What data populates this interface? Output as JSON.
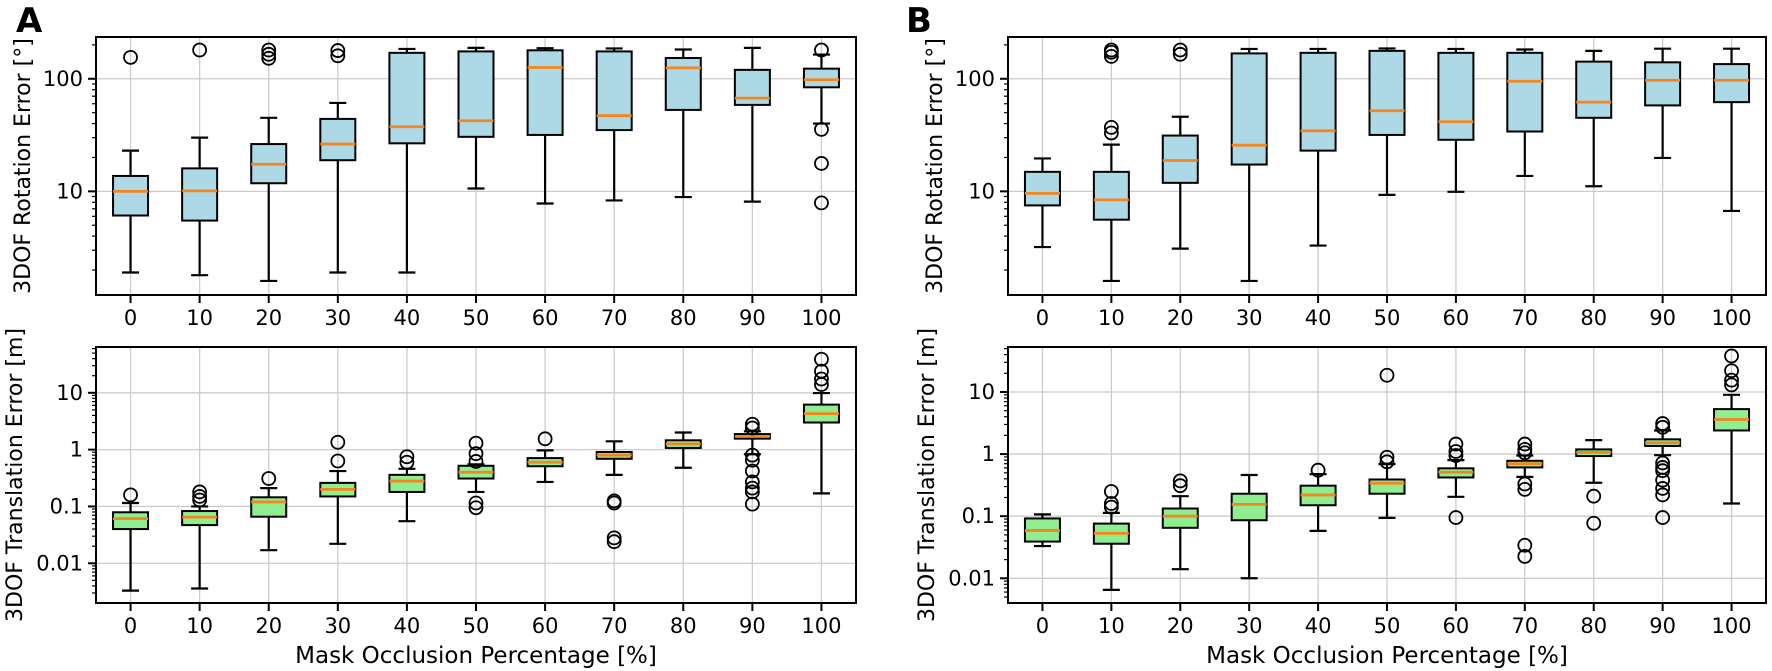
{
  "panels": [
    {
      "label": "A"
    },
    {
      "label": "B"
    }
  ],
  "colors": {
    "rotation_box_fill": "#ADD8E6",
    "translation_box_fill": "#90EE90",
    "median": "#F5861F",
    "grid": "#CCCCCC",
    "axis": "#000000",
    "background": "#FFFFFF"
  },
  "chart_data": [
    {
      "id": "A-rotation",
      "panel": "A",
      "type": "box",
      "yscale": "log",
      "grid": true,
      "ylabel": "3DOF Rotation Error [°]",
      "xlabel": "",
      "ylim": [
        1.2,
        235
      ],
      "yticks": [
        {
          "v": 100,
          "label": "100"
        },
        {
          "v": 10,
          "label": "10"
        }
      ],
      "categories": [
        "0",
        "10",
        "20",
        "30",
        "40",
        "50",
        "60",
        "70",
        "80",
        "90",
        "100"
      ],
      "box_fill": "#ADD8E6",
      "boxes": [
        {
          "whislo": 1.9,
          "q1": 6.1,
          "med": 10,
          "q3": 13.7,
          "whishi": 23,
          "fliers": [
            155
          ]
        },
        {
          "whislo": 1.8,
          "q1": 5.5,
          "med": 10.1,
          "q3": 16,
          "whishi": 30,
          "fliers": [
            180
          ]
        },
        {
          "whislo": 1.6,
          "q1": 11.8,
          "med": 17.4,
          "q3": 26.3,
          "whishi": 45,
          "fliers": [
            152,
            165,
            180
          ]
        },
        {
          "whislo": 1.9,
          "q1": 18.9,
          "med": 26.3,
          "q3": 44,
          "whishi": 61,
          "fliers": [
            160,
            178
          ]
        },
        {
          "whislo": 1.9,
          "q1": 26.7,
          "med": 37.5,
          "q3": 170,
          "whishi": 184,
          "fliers": []
        },
        {
          "whislo": 10.6,
          "q1": 30.5,
          "med": 42.4,
          "q3": 175,
          "whishi": 188,
          "fliers": []
        },
        {
          "whislo": 7.8,
          "q1": 31.7,
          "med": 126,
          "q3": 179,
          "whishi": 187,
          "fliers": []
        },
        {
          "whislo": 8.3,
          "q1": 35,
          "med": 47,
          "q3": 175,
          "whishi": 186,
          "fliers": []
        },
        {
          "whislo": 8.9,
          "q1": 52.9,
          "med": 125,
          "q3": 153,
          "whishi": 182,
          "fliers": []
        },
        {
          "whislo": 8.1,
          "q1": 58.6,
          "med": 67.3,
          "q3": 120,
          "whishi": 188,
          "fliers": []
        },
        {
          "whislo": 40,
          "q1": 84,
          "med": 98,
          "q3": 123,
          "whishi": 164,
          "fliers": [
            180,
            35.5,
            17.7,
            7.9
          ]
        }
      ]
    },
    {
      "id": "B-rotation",
      "panel": "B",
      "type": "box",
      "yscale": "log",
      "grid": true,
      "ylabel": "3DOF Rotation Error [°]",
      "xlabel": "",
      "ylim": [
        1.2,
        235
      ],
      "yticks": [
        {
          "v": 100,
          "label": "100"
        },
        {
          "v": 10,
          "label": "10"
        }
      ],
      "categories": [
        "0",
        "10",
        "20",
        "30",
        "40",
        "50",
        "60",
        "70",
        "80",
        "90",
        "100"
      ],
      "box_fill": "#ADD8E6",
      "boxes": [
        {
          "whislo": 3.2,
          "q1": 7.5,
          "med": 9.6,
          "q3": 14.9,
          "whishi": 19.6,
          "fliers": []
        },
        {
          "whislo": 1.6,
          "q1": 5.6,
          "med": 8.4,
          "q3": 14.9,
          "whishi": 26,
          "fliers": [
            33,
            37,
            158,
            172,
            180
          ]
        },
        {
          "whislo": 3.1,
          "q1": 11.9,
          "med": 18.8,
          "q3": 31.3,
          "whishi": 46,
          "fliers": [
            165,
            180
          ]
        },
        {
          "whislo": 1.6,
          "q1": 17.3,
          "med": 25.7,
          "q3": 168,
          "whishi": 184,
          "fliers": []
        },
        {
          "whislo": 3.3,
          "q1": 23,
          "med": 34.5,
          "q3": 170,
          "whishi": 184,
          "fliers": []
        },
        {
          "whislo": 9.3,
          "q1": 31.7,
          "med": 52,
          "q3": 177,
          "whishi": 186,
          "fliers": []
        },
        {
          "whislo": 9.9,
          "q1": 28.7,
          "med": 41.5,
          "q3": 170,
          "whishi": 184,
          "fliers": []
        },
        {
          "whislo": 13.7,
          "q1": 34,
          "med": 95,
          "q3": 170,
          "whishi": 182,
          "fliers": []
        },
        {
          "whislo": 11.1,
          "q1": 45,
          "med": 62,
          "q3": 142,
          "whishi": 177,
          "fliers": []
        },
        {
          "whislo": 19.8,
          "q1": 58,
          "med": 97,
          "q3": 140,
          "whishi": 185,
          "fliers": []
        },
        {
          "whislo": 6.7,
          "q1": 62,
          "med": 97,
          "q3": 135,
          "whishi": 185,
          "fliers": []
        }
      ]
    },
    {
      "id": "A-translation",
      "panel": "A",
      "type": "box",
      "yscale": "log",
      "grid": true,
      "ylabel": "3DOF Translation Error [m]",
      "xlabel": "Mask Occlusion Percentage [%]",
      "ylim": [
        0.002,
        64
      ],
      "yticks": [
        {
          "v": 10,
          "label": "10"
        },
        {
          "v": 1,
          "label": "1"
        },
        {
          "v": 0.1,
          "label": "0.1"
        },
        {
          "v": 0.01,
          "label": "0.01"
        }
      ],
      "categories": [
        "0",
        "10",
        "20",
        "30",
        "40",
        "50",
        "60",
        "70",
        "80",
        "90",
        "100"
      ],
      "box_fill": "#90EE90",
      "boxes": [
        {
          "whislo": 0.0033,
          "q1": 0.04,
          "med": 0.061,
          "q3": 0.079,
          "whishi": 0.115,
          "fliers": [
            0.16
          ]
        },
        {
          "whislo": 0.0036,
          "q1": 0.047,
          "med": 0.065,
          "q3": 0.083,
          "whishi": 0.1,
          "fliers": [
            0.13,
            0.15,
            0.18
          ]
        },
        {
          "whislo": 0.017,
          "q1": 0.066,
          "med": 0.12,
          "q3": 0.145,
          "whishi": 0.21,
          "fliers": [
            0.31
          ]
        },
        {
          "whislo": 0.022,
          "q1": 0.15,
          "med": 0.2,
          "q3": 0.26,
          "whishi": 0.42,
          "fliers": [
            0.63,
            1.35
          ]
        },
        {
          "whislo": 0.055,
          "q1": 0.18,
          "med": 0.28,
          "q3": 0.36,
          "whishi": 0.46,
          "fliers": [
            0.6,
            0.75
          ]
        },
        {
          "whislo": 0.18,
          "q1": 0.31,
          "med": 0.4,
          "q3": 0.52,
          "whishi": 0.55,
          "fliers": [
            0.62,
            0.85,
            1.3,
            0.115,
            0.095
          ]
        },
        {
          "whislo": 0.27,
          "q1": 0.51,
          "med": 0.6,
          "q3": 0.71,
          "whishi": 0.97,
          "fliers": [
            1.55
          ]
        },
        {
          "whislo": 0.36,
          "q1": 0.69,
          "med": 0.8,
          "q3": 0.91,
          "whishi": 1.4,
          "fliers": [
            0.125,
            0.115,
            0.028,
            0.024
          ]
        },
        {
          "whislo": 0.48,
          "q1": 1.07,
          "med": 1.26,
          "q3": 1.46,
          "whishi": 2.0,
          "fliers": []
        },
        {
          "whislo": 0.83,
          "q1": 1.56,
          "med": 1.71,
          "q3": 1.88,
          "whishi": 2.1,
          "fliers": [
            2.4,
            2.8,
            0.8,
            0.65,
            0.42,
            0.27,
            0.21,
            0.18,
            0.11
          ]
        },
        {
          "whislo": 0.17,
          "q1": 3.0,
          "med": 4.3,
          "q3": 6.2,
          "whishi": 9.9,
          "fliers": [
            14,
            17.5,
            24,
            39
          ]
        }
      ]
    },
    {
      "id": "B-translation",
      "panel": "B",
      "type": "box",
      "yscale": "log",
      "grid": true,
      "ylabel": "3DOF Translation Error [m]",
      "xlabel": "Mask Occlusion Percentage [%]",
      "ylim": [
        0.004,
        53
      ],
      "yticks": [
        {
          "v": 10,
          "label": "10"
        },
        {
          "v": 1,
          "label": "1"
        },
        {
          "v": 0.1,
          "label": "0.1"
        },
        {
          "v": 0.01,
          "label": "0.01"
        }
      ],
      "categories": [
        "0",
        "10",
        "20",
        "30",
        "40",
        "50",
        "60",
        "70",
        "80",
        "90",
        "100"
      ],
      "box_fill": "#90EE90",
      "boxes": [
        {
          "whislo": 0.033,
          "q1": 0.039,
          "med": 0.059,
          "q3": 0.092,
          "whishi": 0.107,
          "fliers": []
        },
        {
          "whislo": 0.0065,
          "q1": 0.036,
          "med": 0.053,
          "q3": 0.076,
          "whishi": 0.113,
          "fliers": [
            0.14,
            0.16,
            0.25
          ]
        },
        {
          "whislo": 0.014,
          "q1": 0.065,
          "med": 0.1,
          "q3": 0.133,
          "whishi": 0.21,
          "fliers": [
            0.31,
            0.37
          ]
        },
        {
          "whislo": 0.01,
          "q1": 0.086,
          "med": 0.155,
          "q3": 0.23,
          "whishi": 0.46,
          "fliers": []
        },
        {
          "whislo": 0.058,
          "q1": 0.15,
          "med": 0.22,
          "q3": 0.31,
          "whishi": 0.475,
          "fliers": [
            0.55
          ]
        },
        {
          "whislo": 0.094,
          "q1": 0.23,
          "med": 0.34,
          "q3": 0.39,
          "whishi": 0.69,
          "fliers": [
            0.75,
            0.89,
            18.6
          ]
        },
        {
          "whislo": 0.205,
          "q1": 0.42,
          "med": 0.51,
          "q3": 0.59,
          "whishi": 0.8,
          "fliers": [
            0.95,
            1.1,
            1.45,
            0.095
          ]
        },
        {
          "whislo": 0.43,
          "q1": 0.61,
          "med": 0.7,
          "q3": 0.78,
          "whishi": 0.95,
          "fliers": [
            1.05,
            1.19,
            1.45,
            0.33,
            0.27,
            0.034,
            0.0225
          ]
        },
        {
          "whislo": 0.345,
          "q1": 0.93,
          "med": 1.06,
          "q3": 1.19,
          "whishi": 1.68,
          "fliers": [
            0.21,
            0.077
          ]
        },
        {
          "whislo": 0.96,
          "q1": 1.35,
          "med": 1.52,
          "q3": 1.73,
          "whishi": 2.4,
          "fliers": [
            2.7,
            3.1,
            0.72,
            0.61,
            0.54,
            0.38,
            0.28,
            0.22,
            0.095
          ]
        },
        {
          "whislo": 0.16,
          "q1": 2.4,
          "med": 3.6,
          "q3": 5.3,
          "whishi": 9.0,
          "fliers": [
            13,
            15.5,
            22,
            38
          ]
        }
      ]
    }
  ]
}
